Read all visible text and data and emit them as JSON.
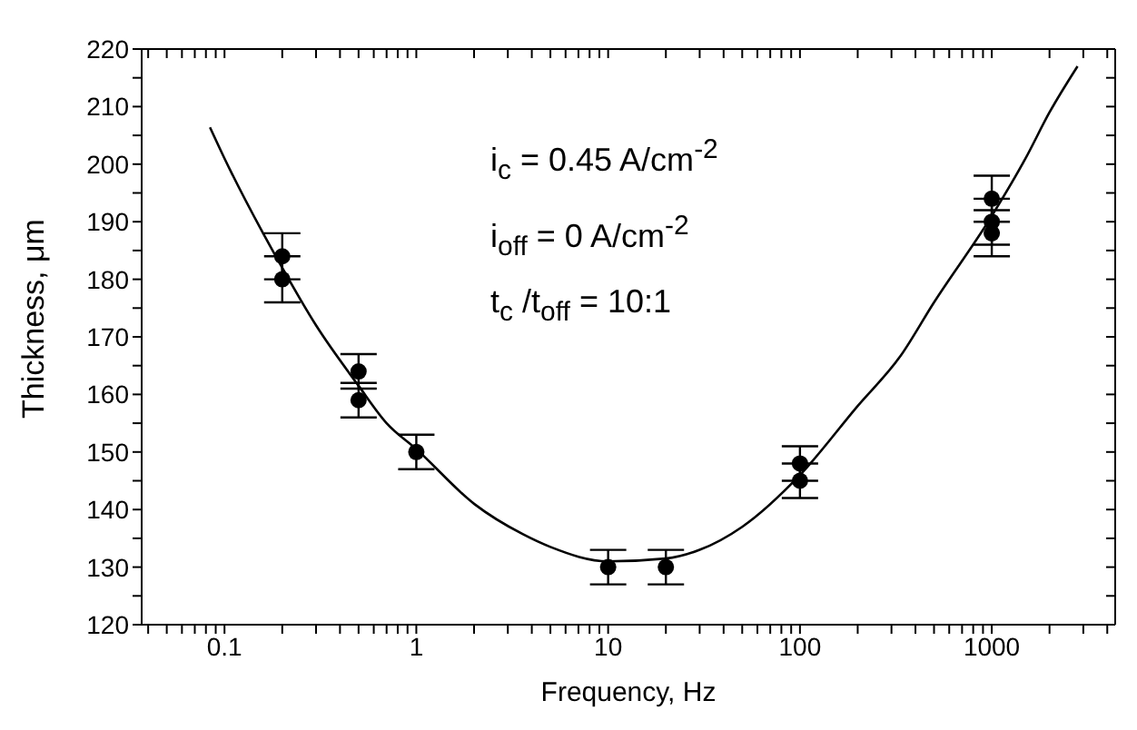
{
  "chart_data": {
    "type": "scatter",
    "xlabel": "Frequency, Hz",
    "ylabel": "Thickness, μm",
    "annotations": [
      "i$_{c}$ = 0.45 A/cm$^{-2}$",
      "i$_{off}$ = 0 A/cm$^{-2}$",
      "t$_{c}$ /t$_{off}$ = 10:1"
    ],
    "log": "x",
    "grid": false,
    "legend": false,
    "marker": "circle",
    "xlim": [
      0.037,
      4400
    ],
    "xticks": [
      {
        "value": 0.04,
        "label": null
      },
      {
        "value": 0.05,
        "label": null
      },
      {
        "value": 0.06,
        "label": null
      },
      {
        "value": 0.07,
        "label": null
      },
      {
        "value": 0.08,
        "label": null
      },
      {
        "value": 0.09,
        "label": null
      },
      0.1,
      {
        "value": 0.2,
        "label": null
      },
      {
        "value": 0.3,
        "label": null
      },
      {
        "value": 0.4,
        "label": null
      },
      {
        "value": 0.5,
        "label": null
      },
      {
        "value": 0.6,
        "label": null
      },
      {
        "value": 0.7,
        "label": null
      },
      {
        "value": 0.8,
        "label": null
      },
      {
        "value": 0.9,
        "label": null
      },
      1,
      {
        "value": 2,
        "label": null
      },
      {
        "value": 3,
        "label": null
      },
      {
        "value": 4,
        "label": null
      },
      {
        "value": 5,
        "label": null
      },
      {
        "value": 6,
        "label": null
      },
      {
        "value": 7,
        "label": null
      },
      {
        "value": 8,
        "label": null
      },
      {
        "value": 9,
        "label": null
      },
      10,
      {
        "value": 20,
        "label": null
      },
      {
        "value": 30,
        "label": null
      },
      {
        "value": 40,
        "label": null
      },
      {
        "value": 50,
        "label": null
      },
      {
        "value": 60,
        "label": null
      },
      {
        "value": 70,
        "label": null
      },
      {
        "value": 80,
        "label": null
      },
      {
        "value": 90,
        "label": null
      },
      100,
      {
        "value": 200,
        "label": null
      },
      {
        "value": 300,
        "label": null
      },
      {
        "value": 400,
        "label": null
      },
      {
        "value": 500,
        "label": null
      },
      {
        "value": 600,
        "label": null
      },
      {
        "value": 700,
        "label": null
      },
      {
        "value": 800,
        "label": null
      },
      {
        "value": 900,
        "label": null
      },
      1000,
      {
        "value": 2000,
        "label": null
      },
      {
        "value": 3000,
        "label": null
      },
      {
        "value": 4000,
        "label": null
      }
    ],
    "ylim": [
      120,
      220
    ],
    "yticks": [
      120,
      {
        "value": 125,
        "label": null
      },
      130,
      {
        "value": 135,
        "label": null
      },
      140,
      {
        "value": 145,
        "label": null
      },
      150,
      {
        "value": 155,
        "label": null
      },
      160,
      {
        "value": 165,
        "label": null
      },
      170,
      {
        "value": 175,
        "label": null
      },
      180,
      {
        "value": 185,
        "label": null
      },
      190,
      {
        "value": 195,
        "label": null
      },
      200,
      {
        "value": 205,
        "label": null
      },
      210,
      {
        "value": 215,
        "label": null
      },
      220
    ],
    "series": [
      {
        "color": "#000000",
        "x": [
          0.2,
          0.2,
          0.5,
          0.5,
          1,
          10,
          20,
          100,
          100,
          1000,
          1000,
          1000
        ],
        "values": [
          184,
          180,
          164,
          159,
          150,
          130,
          130,
          148,
          145,
          194,
          190,
          188
        ],
        "errors": [
          4,
          4,
          3,
          3,
          3,
          3,
          3,
          3,
          3,
          4,
          4,
          4
        ]
      },
      {
        "type": "line",
        "color": "#000000",
        "marker": "none",
        "line_style": "solid",
        "x": [
          0.084,
          0.1,
          0.2,
          0.3,
          0.5,
          0.7,
          1,
          2,
          3.6,
          5,
          10,
          20,
          30,
          50,
          100,
          200,
          333,
          500,
          1000,
          1500,
          2000,
          2800
        ],
        "values": [
          206.4,
          201,
          182,
          172,
          161.5,
          155,
          150.5,
          141,
          135.7,
          133.5,
          131,
          131.5,
          133,
          137,
          146,
          158,
          166.6,
          176,
          191,
          201,
          209,
          217
        ]
      }
    ]
  }
}
